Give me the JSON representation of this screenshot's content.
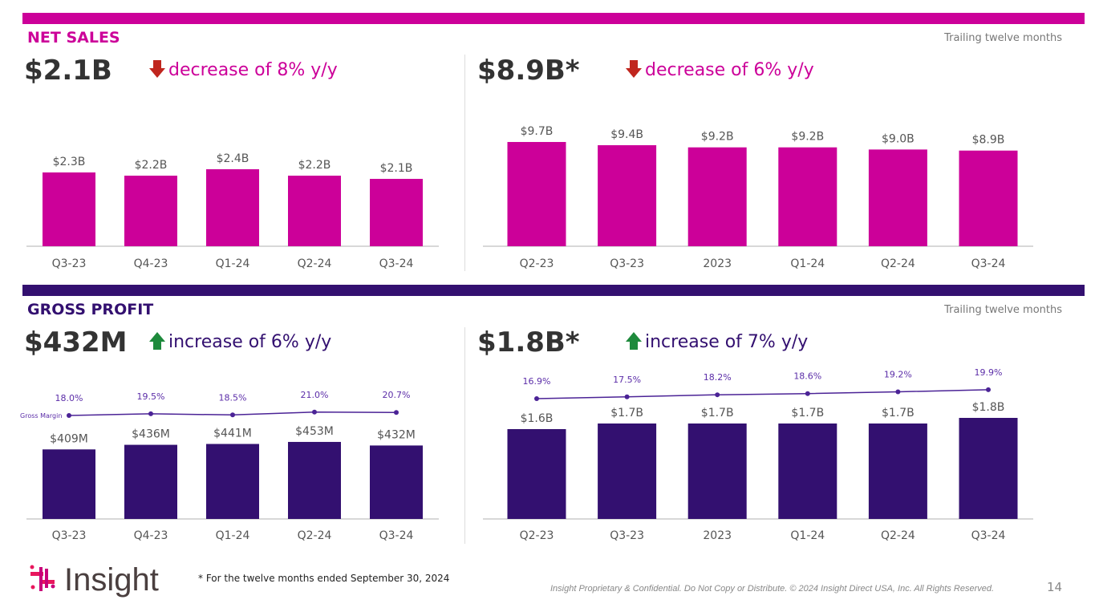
{
  "colors": {
    "magenta": "#CC0099",
    "purple": "#331070",
    "line": "#5B2DA8",
    "down": "#C0261E",
    "up": "#1E8A3C"
  },
  "net_sales": {
    "title": "NET SALES",
    "ttm_label": "Trailing twelve months",
    "quarter_value": "$2.1B",
    "quarter_delta": "decrease of 8% y/y",
    "ttm_value": "$8.9B*",
    "ttm_delta": "decrease of 6% y/y"
  },
  "gross_profit": {
    "title": "GROSS PROFIT",
    "ttm_label": "Trailing twelve months",
    "quarter_value": "$432M",
    "quarter_delta": "increase of 6% y/y",
    "ttm_value": "$1.8B*",
    "ttm_delta": "increase of 7% y/y"
  },
  "chart_data": [
    {
      "type": "bar",
      "categories": [
        "Q3-23",
        "Q4-23",
        "Q1-24",
        "Q2-24",
        "Q3-24"
      ],
      "values": [
        2.3,
        2.2,
        2.4,
        2.2,
        2.1
      ],
      "data_labels": [
        "$2.3B",
        "$2.2B",
        "$2.4B",
        "$2.2B",
        "$2.1B"
      ],
      "unit": "$B",
      "color": "#CC0099"
    },
    {
      "type": "bar",
      "categories": [
        "Q2-23",
        "Q3-23",
        "2023",
        "Q1-24",
        "Q2-24",
        "Q3-24"
      ],
      "values": [
        9.7,
        9.4,
        9.2,
        9.2,
        9.0,
        8.9
      ],
      "data_labels": [
        "$9.7B",
        "$9.4B",
        "$9.2B",
        "$9.2B",
        "$9.0B",
        "$8.9B"
      ],
      "unit": "$B",
      "color": "#CC0099"
    },
    {
      "type": "bar",
      "categories": [
        "Q3-23",
        "Q4-23",
        "Q1-24",
        "Q2-24",
        "Q3-24"
      ],
      "values": [
        409,
        436,
        441,
        453,
        432
      ],
      "data_labels": [
        "$409M",
        "$436M",
        "$441M",
        "$453M",
        "$432M"
      ],
      "unit": "$M",
      "color": "#331070",
      "line_series": {
        "name": "Gross Margin",
        "values": [
          18.0,
          19.5,
          18.5,
          21.0,
          20.7
        ],
        "data_labels": [
          "18.0%",
          "19.5%",
          "18.5%",
          "21.0%",
          "20.7%"
        ]
      }
    },
    {
      "type": "bar",
      "categories": [
        "Q2-23",
        "Q3-23",
        "2023",
        "Q1-24",
        "Q2-24",
        "Q3-24"
      ],
      "values": [
        1.6,
        1.7,
        1.7,
        1.7,
        1.7,
        1.8
      ],
      "data_labels": [
        "$1.6B",
        "$1.7B",
        "$1.7B",
        "$1.7B",
        "$1.7B",
        "$1.8B"
      ],
      "unit": "$B",
      "color": "#331070",
      "line_series": {
        "values": [
          16.9,
          17.5,
          18.2,
          18.6,
          19.2,
          19.9
        ],
        "data_labels": [
          "16.9%",
          "17.5%",
          "18.2%",
          "18.6%",
          "19.2%",
          "19.9%"
        ]
      }
    }
  ],
  "footer": {
    "logo_text": "Insight",
    "footnote": "* For the twelve months ended September 30, 2024",
    "legal": "Insight Proprietary & Confidential. Do Not Copy or Distribute. © 2024 Insight Direct USA, Inc. All Rights Reserved.",
    "page_number": "14"
  }
}
